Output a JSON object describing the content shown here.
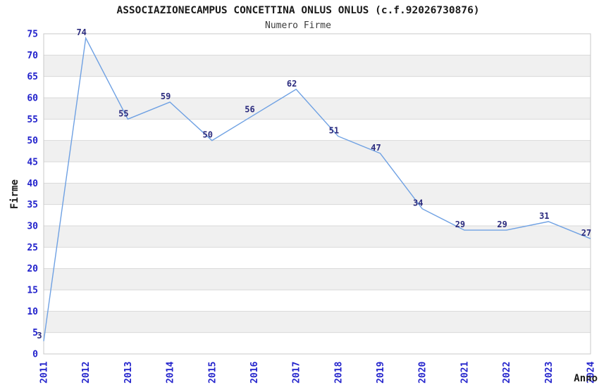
{
  "title": "ASSOCIAZIONECAMPUS CONCETTINA ONLUS ONLUS (c.f.92026730876)",
  "subtitle": "Numero Firme",
  "chart_data": {
    "type": "line",
    "title": "ASSOCIAZIONECAMPUS CONCETTINA ONLUS ONLUS (c.f.92026730876)",
    "subtitle": "Numero Firme",
    "xlabel": "Anno",
    "ylabel": "Firme",
    "x": [
      2011,
      2012,
      2013,
      2014,
      2015,
      2016,
      2017,
      2018,
      2019,
      2020,
      2021,
      2022,
      2023,
      2024
    ],
    "series": [
      {
        "name": "Numero Firme",
        "values": [
          3,
          74,
          55,
          59,
          50,
          56,
          62,
          51,
          47,
          34,
          29,
          29,
          31,
          27
        ]
      }
    ],
    "point_labels_visible": true,
    "ylim": [
      0,
      75
    ],
    "ytick_step": 5,
    "yticks": [
      0,
      5,
      10,
      15,
      20,
      25,
      30,
      35,
      40,
      45,
      50,
      55,
      60,
      65,
      70,
      75
    ],
    "xticks": [
      "2011",
      "2012",
      "2013",
      "2014",
      "2015",
      "2016",
      "2017",
      "2018",
      "2019",
      "2020",
      "2021",
      "2022",
      "2023",
      "2024"
    ],
    "xtick_rotation_degrees": 90,
    "legend": "none",
    "grid": {
      "horizontal_lines": true,
      "alternating_bands": true
    },
    "colors": {
      "line": "#6fa1e3",
      "tick_label": "#2323cc",
      "point_label": "#2b2b7e",
      "band_fill": "#f0f0f0",
      "gridline": "#d9d9d9",
      "plot_border": "#c9c9c9",
      "title": "#1a1a1a",
      "subtitle": "#3c3c3c",
      "axis_title": "#1a1a1a",
      "background": "#ffffff"
    }
  }
}
